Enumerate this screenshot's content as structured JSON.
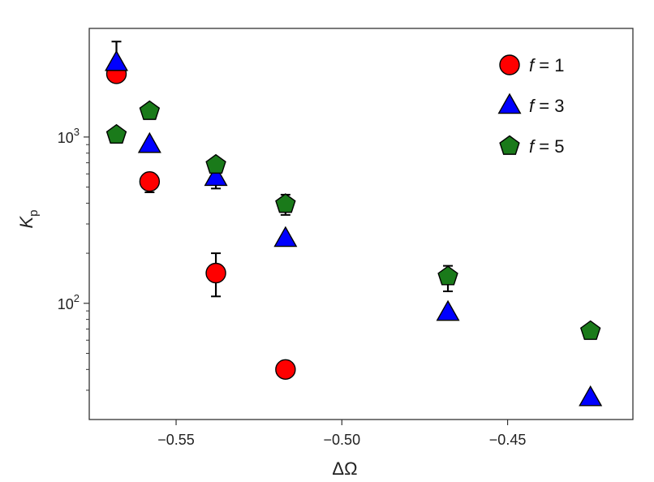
{
  "chart_data": {
    "type": "scatter",
    "title": "",
    "xlabel": "ΔΩ",
    "ylabel_main": "K",
    "ylabel_sub": "p",
    "yscale": "log",
    "xlim": [
      -0.5762,
      -0.4122
    ],
    "ylim": [
      20,
      4500
    ],
    "x_ticks": [
      -0.55,
      -0.5,
      -0.45
    ],
    "x_tick_labels": [
      "−0.55",
      "−0.50",
      "−0.45"
    ],
    "y_ticks": [
      100,
      1000
    ],
    "y_tick_labels": [
      {
        "base": "10",
        "exp": "2"
      },
      {
        "base": "10",
        "exp": "3"
      }
    ],
    "grid": false,
    "legend_position": "top-right",
    "series": [
      {
        "name_var": "f",
        "name_rest": " = 1",
        "marker": "circle",
        "color": "#ff0000",
        "points": [
          {
            "x": -0.568,
            "y": 2400,
            "err": [
              2150,
              2500
            ]
          },
          {
            "x": -0.558,
            "y": 540,
            "err": [
              465,
              590
            ]
          },
          {
            "x": -0.538,
            "y": 152,
            "err": [
              110,
              200
            ]
          },
          {
            "x": -0.517,
            "y": 40
          }
        ]
      },
      {
        "name_var": "f",
        "name_rest": " = 3",
        "marker": "triangle",
        "color": "#0000ff",
        "points": [
          {
            "x": -0.568,
            "y": 2800,
            "err": [
              2400,
              3750
            ]
          },
          {
            "x": -0.558,
            "y": 900
          },
          {
            "x": -0.538,
            "y": 570,
            "err": [
              490,
              640
            ]
          },
          {
            "x": -0.517,
            "y": 245
          },
          {
            "x": -0.468,
            "y": 88
          },
          {
            "x": -0.425,
            "y": 27
          }
        ]
      },
      {
        "name_var": "f",
        "name_rest": " = 5",
        "marker": "pentagon",
        "color": "#1a7a1a",
        "points": [
          {
            "x": -0.568,
            "y": 1030
          },
          {
            "x": -0.558,
            "y": 1430
          },
          {
            "x": -0.538,
            "y": 680
          },
          {
            "x": -0.517,
            "y": 395,
            "err": [
              340,
              450
            ]
          },
          {
            "x": -0.468,
            "y": 145,
            "err": [
              118,
              168
            ]
          },
          {
            "x": -0.425,
            "y": 68
          }
        ]
      }
    ]
  }
}
